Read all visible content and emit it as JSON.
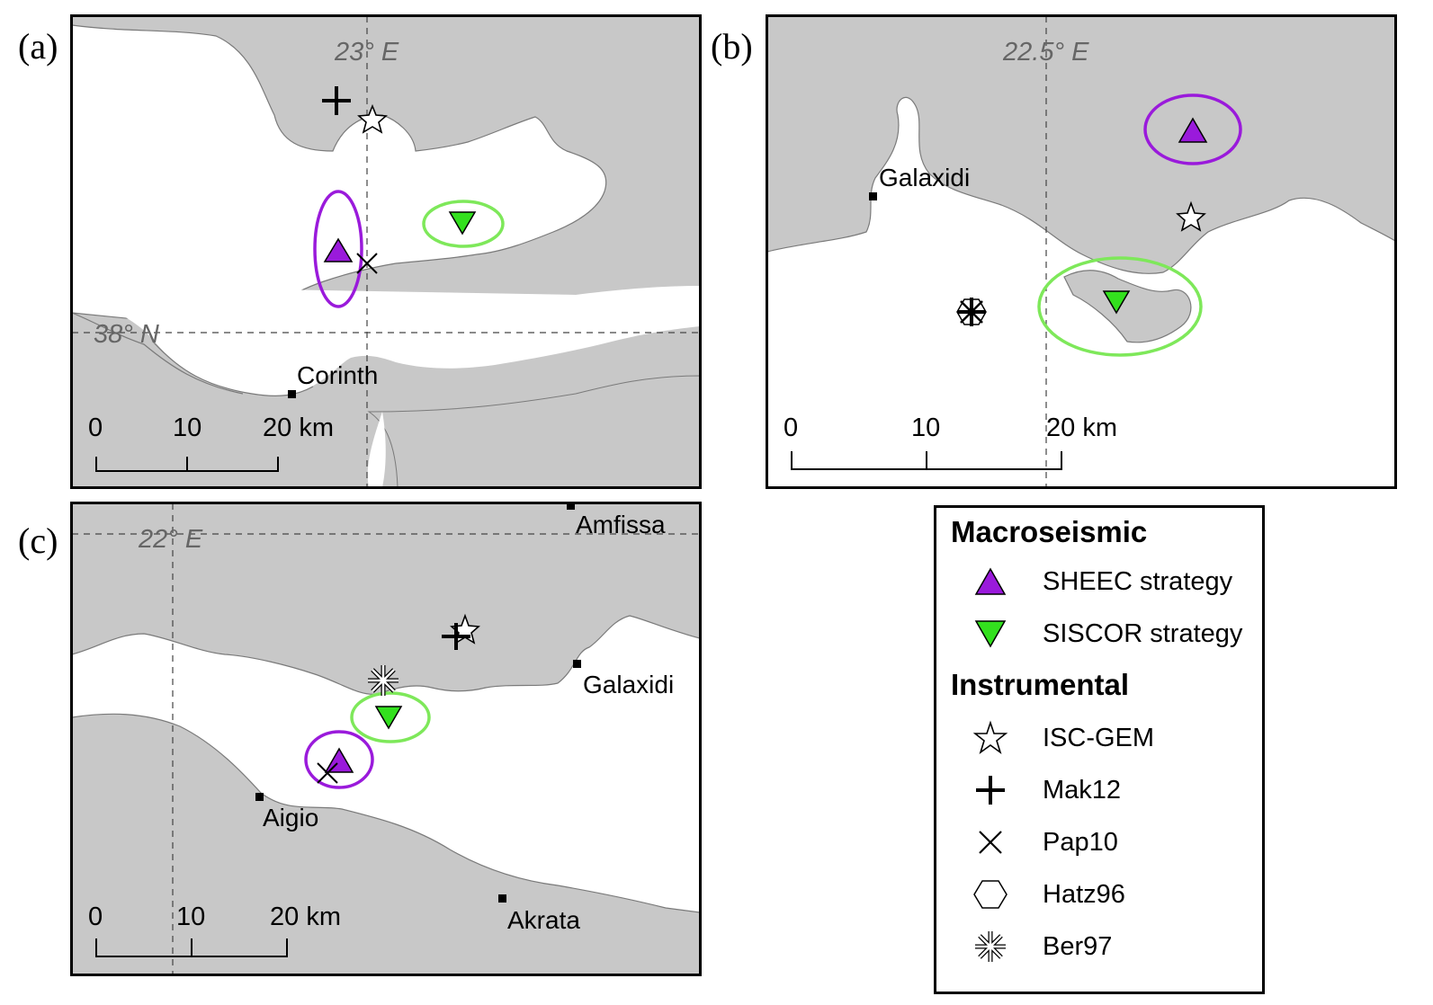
{
  "panels": {
    "a": {
      "label": "(a)",
      "lon_label": "23° E",
      "lat_label": "38° N",
      "places": [
        "Corinth"
      ],
      "scale": [
        "0",
        "10",
        "20 km"
      ]
    },
    "b": {
      "label": "(b)",
      "lon_label": "22.5° E",
      "places": [
        "Galaxidi"
      ],
      "scale": [
        "0",
        "10",
        "20 km"
      ]
    },
    "c": {
      "label": "(c)",
      "lon_label": "22° E",
      "places": [
        "Amfissa",
        "Galaxidi",
        "Aigio",
        "Akrata"
      ],
      "scale": [
        "0",
        "10",
        "20 km"
      ]
    }
  },
  "legend": {
    "macroseismic_title": "Macroseismic",
    "instrumental_title": "Instrumental",
    "items": [
      {
        "label": "SHEEC strategy",
        "icon": "triangle-up-purple"
      },
      {
        "label": "SISCOR strategy",
        "icon": "triangle-down-green"
      },
      {
        "label": "ISC-GEM",
        "icon": "star"
      },
      {
        "label": "Mak12",
        "icon": "plus"
      },
      {
        "label": "Pap10",
        "icon": "cross"
      },
      {
        "label": "Hatz96",
        "icon": "hexagon"
      },
      {
        "label": "Ber97",
        "icon": "asterisk"
      }
    ]
  },
  "colors": {
    "land": "#c8c8c8",
    "sea": "#ffffff",
    "coast": "#7a7a7a",
    "gridline": "#444444",
    "sheec": "#9a1adb",
    "siscor": "#33e01e",
    "sheec_ellipse": "#9a1adb",
    "siscor_ellipse": "#7ee85a"
  }
}
